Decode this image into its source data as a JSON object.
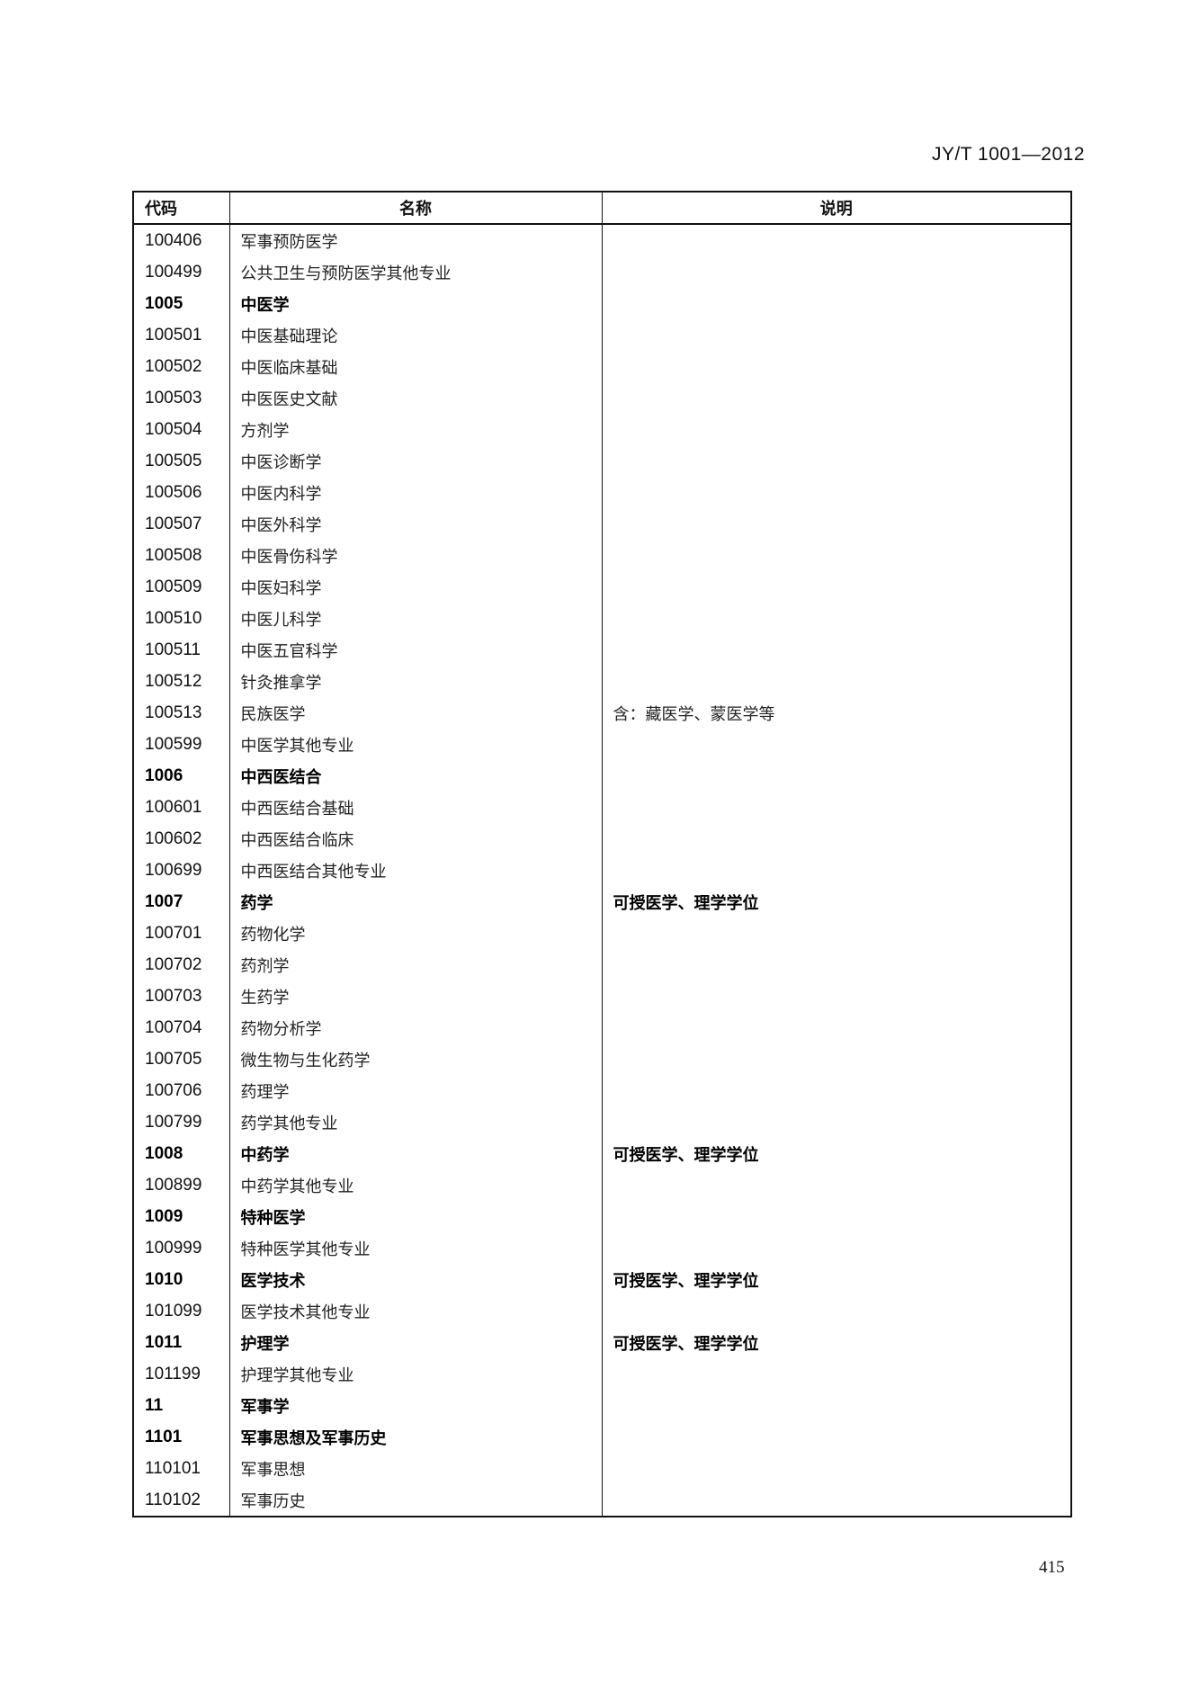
{
  "header": {
    "standard_number": "JY/T 1001—2012"
  },
  "table": {
    "columns": [
      "代码",
      "名称",
      "说明"
    ],
    "rows": [
      {
        "code": "100406",
        "name": "军事预防医学",
        "note": "",
        "bold": false
      },
      {
        "code": "100499",
        "name": "公共卫生与预防医学其他专业",
        "note": "",
        "bold": false
      },
      {
        "code": "1005",
        "name": "中医学",
        "note": "",
        "bold": true
      },
      {
        "code": "100501",
        "name": "中医基础理论",
        "note": "",
        "bold": false
      },
      {
        "code": "100502",
        "name": "中医临床基础",
        "note": "",
        "bold": false
      },
      {
        "code": "100503",
        "name": "中医医史文献",
        "note": "",
        "bold": false
      },
      {
        "code": "100504",
        "name": "方剂学",
        "note": "",
        "bold": false
      },
      {
        "code": "100505",
        "name": "中医诊断学",
        "note": "",
        "bold": false
      },
      {
        "code": "100506",
        "name": "中医内科学",
        "note": "",
        "bold": false
      },
      {
        "code": "100507",
        "name": "中医外科学",
        "note": "",
        "bold": false
      },
      {
        "code": "100508",
        "name": "中医骨伤科学",
        "note": "",
        "bold": false
      },
      {
        "code": "100509",
        "name": "中医妇科学",
        "note": "",
        "bold": false
      },
      {
        "code": "100510",
        "name": "中医儿科学",
        "note": "",
        "bold": false
      },
      {
        "code": "100511",
        "name": "中医五官科学",
        "note": "",
        "bold": false
      },
      {
        "code": "100512",
        "name": "针灸推拿学",
        "note": "",
        "bold": false
      },
      {
        "code": "100513",
        "name": "民族医学",
        "note": "含：藏医学、蒙医学等",
        "bold": false
      },
      {
        "code": "100599",
        "name": "中医学其他专业",
        "note": "",
        "bold": false
      },
      {
        "code": "1006",
        "name": "中西医结合",
        "note": "",
        "bold": true
      },
      {
        "code": "100601",
        "name": "中西医结合基础",
        "note": "",
        "bold": false
      },
      {
        "code": "100602",
        "name": "中西医结合临床",
        "note": "",
        "bold": false
      },
      {
        "code": "100699",
        "name": "中西医结合其他专业",
        "note": "",
        "bold": false
      },
      {
        "code": "1007",
        "name": "药学",
        "note": "可授医学、理学学位",
        "bold": true
      },
      {
        "code": "100701",
        "name": "药物化学",
        "note": "",
        "bold": false
      },
      {
        "code": "100702",
        "name": "药剂学",
        "note": "",
        "bold": false
      },
      {
        "code": "100703",
        "name": "生药学",
        "note": "",
        "bold": false
      },
      {
        "code": "100704",
        "name": "药物分析学",
        "note": "",
        "bold": false
      },
      {
        "code": "100705",
        "name": "微生物与生化药学",
        "note": "",
        "bold": false
      },
      {
        "code": "100706",
        "name": "药理学",
        "note": "",
        "bold": false
      },
      {
        "code": "100799",
        "name": "药学其他专业",
        "note": "",
        "bold": false
      },
      {
        "code": "1008",
        "name": "中药学",
        "note": "可授医学、理学学位",
        "bold": true
      },
      {
        "code": "100899",
        "name": "中药学其他专业",
        "note": "",
        "bold": false
      },
      {
        "code": "1009",
        "name": "特种医学",
        "note": "",
        "bold": true
      },
      {
        "code": "100999",
        "name": "特种医学其他专业",
        "note": "",
        "bold": false
      },
      {
        "code": "1010",
        "name": "医学技术",
        "note": "可授医学、理学学位",
        "bold": true
      },
      {
        "code": "101099",
        "name": "医学技术其他专业",
        "note": "",
        "bold": false
      },
      {
        "code": "1011",
        "name": "护理学",
        "note": "可授医学、理学学位",
        "bold": true
      },
      {
        "code": "101199",
        "name": "护理学其他专业",
        "note": "",
        "bold": false
      },
      {
        "code": "11",
        "name": "军事学",
        "note": "",
        "bold": true
      },
      {
        "code": "1101",
        "name": "军事思想及军事历史",
        "note": "",
        "bold": true
      },
      {
        "code": "110101",
        "name": "军事思想",
        "note": "",
        "bold": false
      },
      {
        "code": "110102",
        "name": "军事历史",
        "note": "",
        "bold": false
      }
    ]
  },
  "footer": {
    "page_number": "415"
  }
}
